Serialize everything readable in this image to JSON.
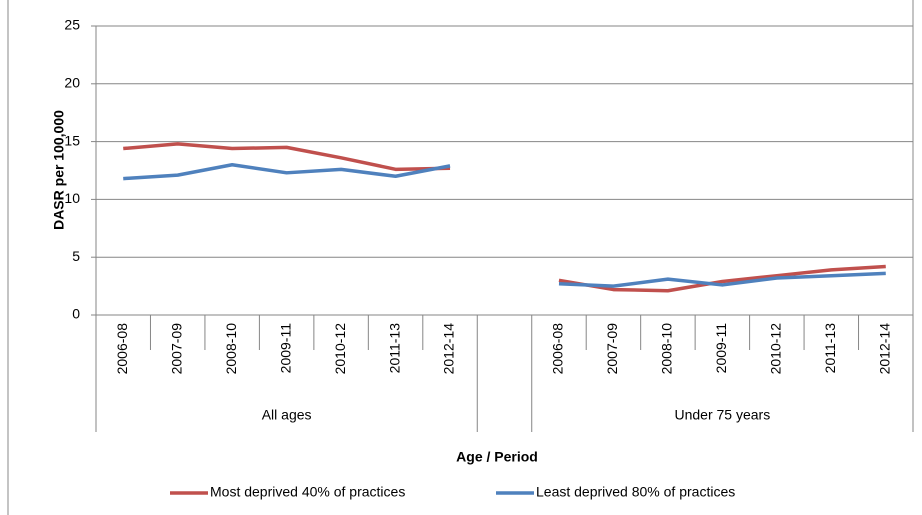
{
  "chart_data": {
    "type": "line",
    "y_label": "DASR per 100,000",
    "x_label": "Age / Period",
    "categories": [
      "2006-08",
      "2007-09",
      "2008-10",
      "2009-11",
      "2010-12",
      "2011-13",
      "2012-14",
      null,
      "2006-08",
      "2007-09",
      "2008-10",
      "2009-11",
      "2010-12",
      "2011-13",
      "2012-14"
    ],
    "category_groups": [
      "All ages",
      "Under 75 years"
    ],
    "series": [
      {
        "name": "Most deprived 40% of practices",
        "color": "#c0504d",
        "values": [
          14.4,
          14.8,
          14.4,
          14.5,
          13.6,
          12.6,
          12.7,
          null,
          3.0,
          2.2,
          2.1,
          2.9,
          3.4,
          3.9,
          4.2
        ]
      },
      {
        "name": "Least deprived 80% of practices",
        "color": "#4f81bd",
        "values": [
          11.8,
          12.1,
          13.0,
          12.3,
          12.6,
          12.0,
          12.9,
          null,
          2.7,
          2.5,
          3.1,
          2.6,
          3.2,
          3.4,
          3.6
        ]
      }
    ],
    "ylim": [
      0,
      25
    ],
    "yticks": [
      0,
      5,
      10,
      15,
      20,
      25
    ],
    "grid": true,
    "legend": "bottom"
  }
}
